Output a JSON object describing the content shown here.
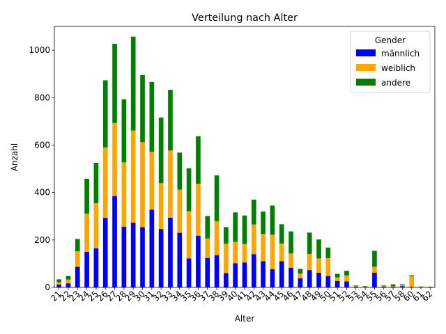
{
  "chart_data": {
    "type": "bar",
    "stacked": true,
    "title": "Verteilung nach Alter",
    "xlabel": "Alter",
    "ylabel": "Anzahl",
    "ylim": [
      0,
      1100
    ],
    "yticks": [
      0,
      200,
      400,
      600,
      800,
      1000
    ],
    "grid": false,
    "legend": {
      "title": "Gender",
      "placement": "top-right"
    },
    "categories": [
      "21",
      "22",
      "23",
      "24",
      "25",
      "26",
      "27",
      "28",
      "29",
      "30",
      "31",
      "32",
      "33",
      "34",
      "35",
      "36",
      "37",
      "38",
      "39",
      "40",
      "41",
      "42",
      "43",
      "44",
      "45",
      "46",
      "47",
      "48",
      "49",
      "50",
      "51",
      "52",
      "53",
      "54",
      "55",
      "56",
      "57",
      "58",
      "60",
      "61",
      "62"
    ],
    "series": [
      {
        "name": "männlich",
        "color": "#0000ff",
        "values": [
          12,
          17,
          87,
          150,
          165,
          293,
          385,
          256,
          273,
          254,
          327,
          246,
          294,
          230,
          122,
          218,
          124,
          136,
          60,
          102,
          105,
          140,
          110,
          77,
          110,
          83,
          38,
          73,
          62,
          48,
          27,
          25,
          3,
          2,
          62,
          3,
          3,
          5,
          2,
          1,
          1
        ]
      },
      {
        "name": "weiblich",
        "color": "#ffa500",
        "values": [
          10,
          16,
          65,
          160,
          190,
          297,
          308,
          271,
          388,
          358,
          244,
          193,
          283,
          182,
          199,
          219,
          82,
          143,
          124,
          90,
          78,
          125,
          115,
          145,
          75,
          60,
          20,
          68,
          60,
          75,
          15,
          25,
          2,
          2,
          25,
          2,
          2,
          4,
          45,
          2,
          1
        ]
      },
      {
        "name": "andere",
        "color": "#008000",
        "values": [
          12,
          15,
          52,
          148,
          170,
          283,
          334,
          266,
          396,
          283,
          295,
          277,
          256,
          156,
          181,
          200,
          95,
          193,
          70,
          124,
          120,
          105,
          95,
          123,
          81,
          93,
          20,
          90,
          80,
          45,
          15,
          20,
          3,
          2,
          67,
          3,
          8,
          4,
          4,
          1,
          1
        ]
      }
    ]
  }
}
